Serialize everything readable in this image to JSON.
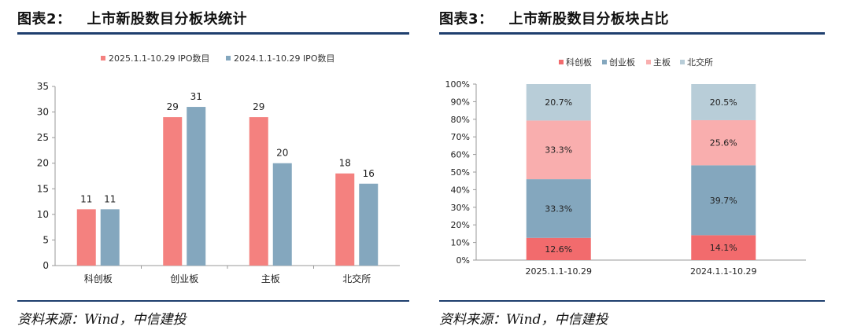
{
  "left_panel": {
    "title_label": "图表2：",
    "title_text": "上市新股数目分板块统计",
    "source": "资料来源：Wind，中信建投"
  },
  "right_panel": {
    "title_label": "图表3：",
    "title_text": "上市新股数目分板块占比",
    "source": "资料来源：Wind，中信建投"
  },
  "colors": {
    "rule": "#1f3f6e",
    "ipo_2025": "#f4817f",
    "ipo_2024": "#84a7be",
    "star": "#f26b6d",
    "chinext": "#84a7be",
    "main": "#f9aeae",
    "bse": "#b8cdd8"
  },
  "chart_data": [
    {
      "type": "bar",
      "title": "",
      "categories": [
        "科创板",
        "创业板",
        "主板",
        "北交所"
      ],
      "series": [
        {
          "name": "2025.1.1-10.29 IPO数目",
          "values": [
            11,
            29,
            29,
            18
          ]
        },
        {
          "name": "2024.1.1-10.29 IPO数目",
          "values": [
            11,
            31,
            20,
            16
          ]
        }
      ],
      "ylim": [
        0,
        35
      ],
      "yticks": [
        0,
        5,
        10,
        15,
        20,
        25,
        30,
        35
      ],
      "xlabel": "",
      "ylabel": "",
      "legend_position": "top-center",
      "grid": false
    },
    {
      "type": "bar",
      "stacked": true,
      "percent": true,
      "title": "",
      "categories": [
        "2025.1.1-10.29",
        "2024.1.1-10.29"
      ],
      "series": [
        {
          "name": "科创板",
          "values": [
            12.6,
            14.1
          ]
        },
        {
          "name": "创业板",
          "values": [
            33.3,
            39.7
          ]
        },
        {
          "name": "主板",
          "values": [
            33.3,
            25.6
          ]
        },
        {
          "name": "北交所",
          "values": [
            20.7,
            20.5
          ]
        }
      ],
      "ylim": [
        0,
        100
      ],
      "yticks": [
        "0%",
        "10%",
        "20%",
        "30%",
        "40%",
        "50%",
        "60%",
        "70%",
        "80%",
        "90%",
        "100%"
      ],
      "xlabel": "",
      "ylabel": "",
      "legend_position": "top-center",
      "grid": false
    }
  ]
}
